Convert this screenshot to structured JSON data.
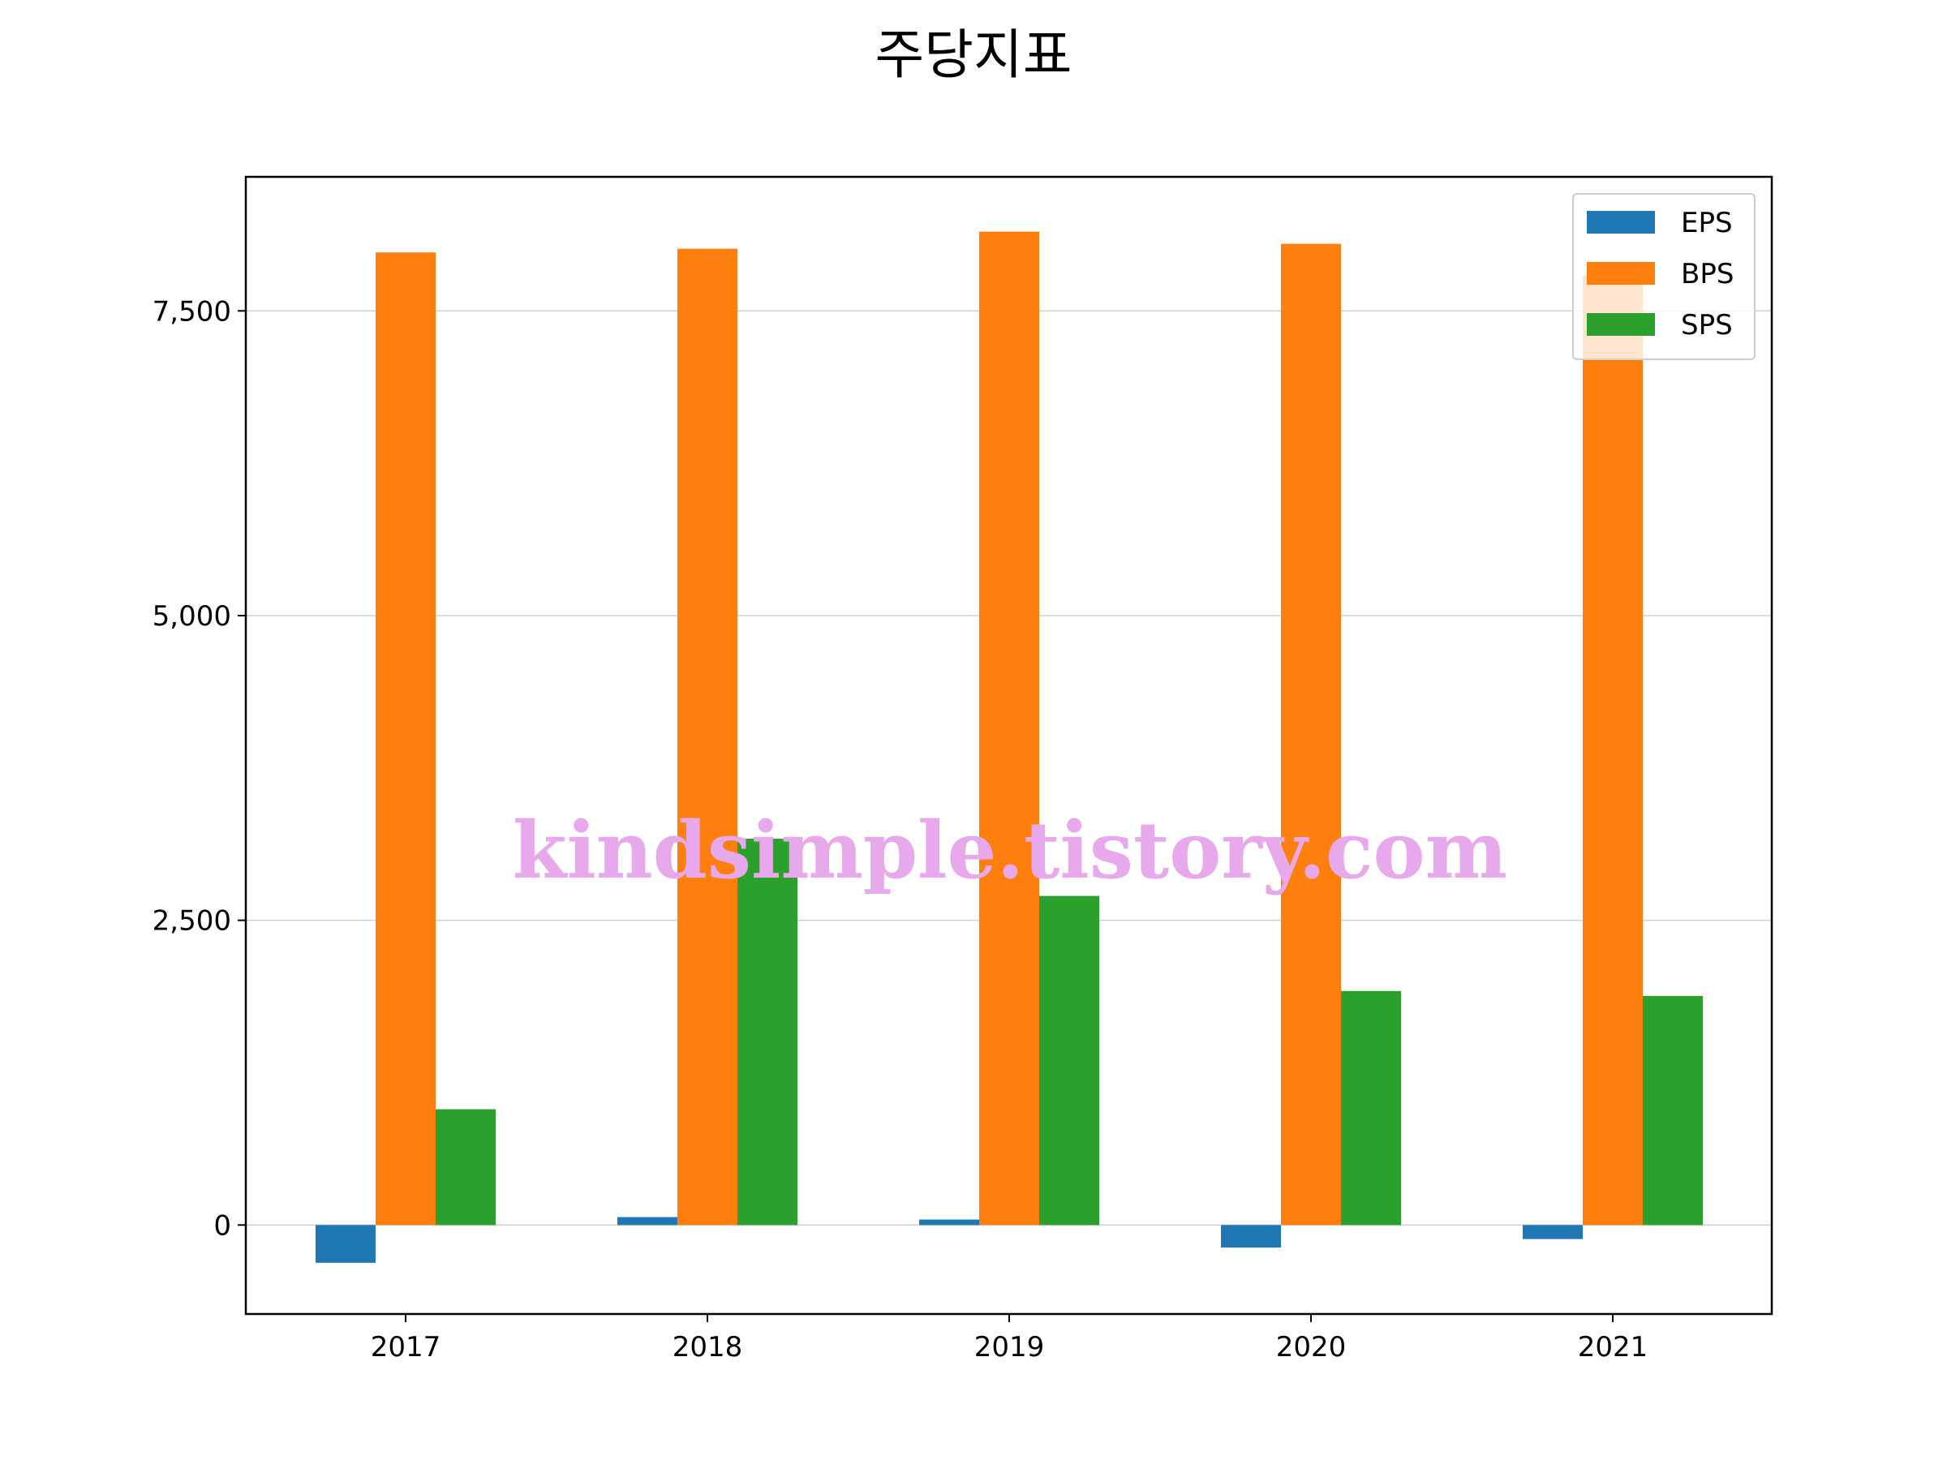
{
  "chart_data": {
    "type": "bar",
    "title": "주당지표",
    "categories": [
      "2017",
      "2018",
      "2019",
      "2020",
      "2021"
    ],
    "series": [
      {
        "name": "EPS",
        "color": "#1f77b4",
        "values": [
          -310,
          65,
          45,
          -185,
          -115
        ]
      },
      {
        "name": "BPS",
        "color": "#ff7f0e",
        "values": [
          7980,
          8010,
          8150,
          8050,
          7790
        ]
      },
      {
        "name": "SPS",
        "color": "#2ca02c",
        "values": [
          950,
          3170,
          2700,
          1920,
          1880
        ]
      }
    ],
    "ylim": [
      -730,
      8600
    ],
    "yticks": [
      0,
      2500,
      5000,
      7500
    ],
    "ytick_labels": [
      "0",
      "2,500",
      "5,000",
      "7,500"
    ],
    "grid": "horizontal",
    "legend": "top-right",
    "xlabel": "",
    "ylabel": ""
  },
  "watermark": "kindsimple.tistory.com"
}
